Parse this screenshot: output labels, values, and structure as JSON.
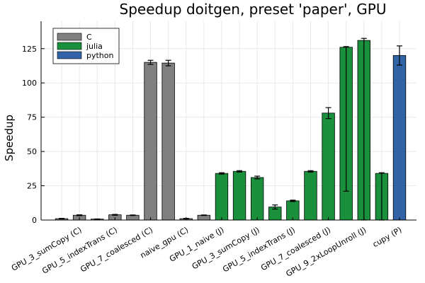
{
  "chart_data": {
    "type": "bar",
    "title": "Speedup doitgen, preset 'paper', GPU",
    "xlabel": "",
    "ylabel": "Speedup",
    "ylim": [
      0,
      145
    ],
    "yticks": [
      0,
      25,
      50,
      75,
      100,
      125
    ],
    "grid": true,
    "legend_position": "top-left",
    "legend": [
      {
        "name": "C",
        "color": "#808080"
      },
      {
        "name": "julia",
        "color": "#1a8f3c"
      },
      {
        "name": "python",
        "color": "#3163a6"
      }
    ],
    "bars": [
      {
        "series": "C",
        "label": "",
        "value": 1.0,
        "err_low": 0.2,
        "err_high": 0.2
      },
      {
        "series": "C",
        "label": "GPU_3_sumCopy (C)",
        "value": 3.5,
        "err_low": 0.3,
        "err_high": 0.3
      },
      {
        "series": "C",
        "label": "",
        "value": 0.7,
        "err_low": 0.1,
        "err_high": 0.1
      },
      {
        "series": "C",
        "label": "GPU_5_indexTrans (C)",
        "value": 3.8,
        "err_low": 0.3,
        "err_high": 0.3
      },
      {
        "series": "C",
        "label": "",
        "value": 3.5,
        "err_low": 0.2,
        "err_high": 0.2
      },
      {
        "series": "C",
        "label": "GPU_7_coalesced (C)",
        "value": 115,
        "err_low": 1.5,
        "err_high": 1.5
      },
      {
        "series": "C",
        "label": "",
        "value": 114.5,
        "err_low": 2,
        "err_high": 2
      },
      {
        "series": "C",
        "label": "naive_gpu (C)",
        "value": 1.0,
        "err_low": 0.2,
        "err_high": 0.2
      },
      {
        "series": "C",
        "label": "",
        "value": 3.5,
        "err_low": 0.2,
        "err_high": 0.2
      },
      {
        "series": "julia",
        "label": "GPU_1_naive (J)",
        "value": 34,
        "err_low": 0.5,
        "err_high": 0.5
      },
      {
        "series": "julia",
        "label": "",
        "value": 35.5,
        "err_low": 0.5,
        "err_high": 0.5
      },
      {
        "series": "julia",
        "label": "GPU_3_sumCopy (J)",
        "value": 31,
        "err_low": 1,
        "err_high": 1
      },
      {
        "series": "julia",
        "label": "",
        "value": 9.5,
        "err_low": 1.5,
        "err_high": 1.5
      },
      {
        "series": "julia",
        "label": "GPU_5_indexTrans (J)",
        "value": 14,
        "err_low": 0.5,
        "err_high": 0.5
      },
      {
        "series": "julia",
        "label": "",
        "value": 35.5,
        "err_low": 0.5,
        "err_high": 0.5
      },
      {
        "series": "julia",
        "label": "GPU_7_coalesced (J)",
        "value": 78,
        "err_low": 4,
        "err_high": 4
      },
      {
        "series": "julia",
        "label": "",
        "value": 126,
        "err_low": 105,
        "err_high": 0.5
      },
      {
        "series": "julia",
        "label": "GPU_9_2xLoopUnroll (J)",
        "value": 131,
        "err_low": 131,
        "err_high": 1.5
      },
      {
        "series": "julia",
        "label": "",
        "value": 34,
        "err_low": 34,
        "err_high": 0.5
      },
      {
        "series": "python",
        "label": "cupy (P)",
        "value": 120,
        "err_low": 7,
        "err_high": 7
      }
    ]
  }
}
